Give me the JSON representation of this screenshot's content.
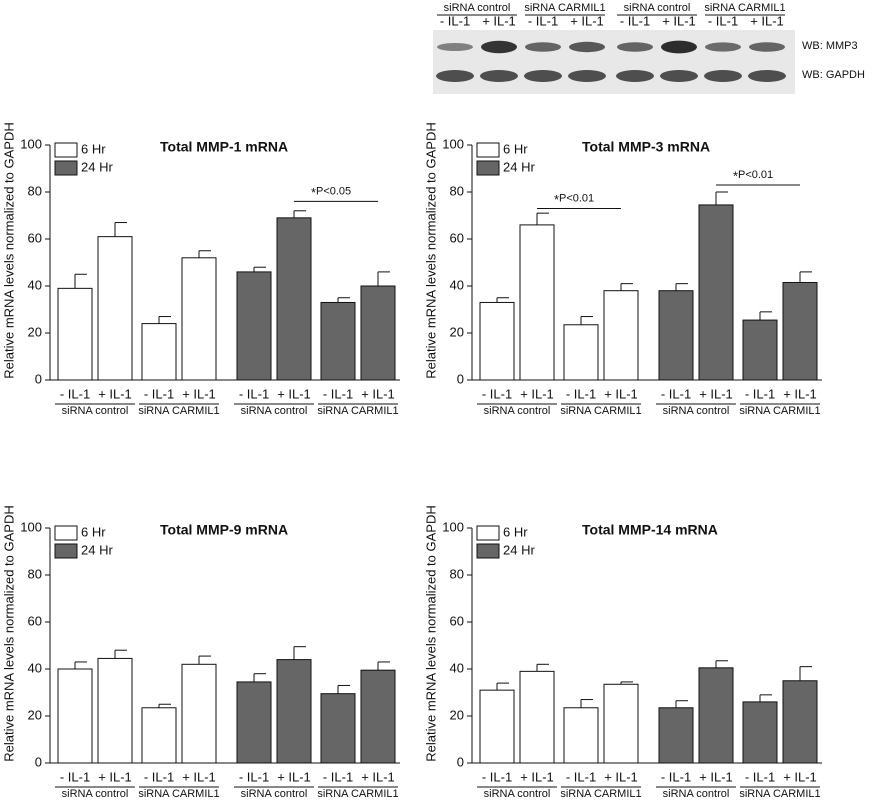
{
  "blot": {
    "groups": [
      "siRNA control",
      "siRNA CARMIL1",
      "siRNA control",
      "siRNA CARMIL1"
    ],
    "lanes": [
      "- IL-1",
      "+ IL-1",
      "- IL-1",
      "+ IL-1",
      "- IL-1",
      "+ IL-1",
      "- IL-1",
      "+ IL-1"
    ],
    "rows": [
      "WB: MMP3",
      "WB: GAPDH"
    ]
  },
  "chart_data": [
    {
      "type": "bar",
      "title": "Total MMP-1 mRNA",
      "ylabel": "Relative mRNA levels normalized to GAPDH",
      "categories": [
        "- IL-1",
        "+ IL-1",
        "- IL-1",
        "+ IL-1",
        "- IL-1",
        "+ IL-1",
        "- IL-1",
        "+ IL-1"
      ],
      "groups": [
        "siRNA control",
        "siRNA CARMIL1",
        "siRNA control",
        "siRNA CARMIL1"
      ],
      "series": [
        {
          "name": "6 Hr",
          "color": "#ffffff",
          "values": [
            39,
            61,
            24,
            52,
            null,
            null,
            null,
            null
          ],
          "errors": [
            6,
            6,
            3,
            3,
            null,
            null,
            null,
            null
          ]
        },
        {
          "name": "24 Hr",
          "color": "#666666",
          "values": [
            null,
            null,
            null,
            null,
            46,
            69,
            33,
            40
          ],
          "errors": [
            null,
            null,
            null,
            null,
            2,
            3,
            2,
            6
          ]
        }
      ],
      "annotations": [
        {
          "star": "*",
          "text": "P<0.05",
          "from": 5,
          "to": 7,
          "y": 76
        }
      ],
      "ylim": [
        0,
        100
      ],
      "yticks": [
        0,
        20,
        40,
        60,
        80,
        100
      ]
    },
    {
      "type": "bar",
      "title": "Total MMP-3 mRNA",
      "ylabel": "Relative mRNA levels normalized to GAPDH",
      "categories": [
        "- IL-1",
        "+ IL-1",
        "- IL-1",
        "+ IL-1",
        "- IL-1",
        "+ IL-1",
        "- IL-1",
        "+ IL-1"
      ],
      "groups": [
        "siRNA control",
        "siRNA CARMIL1",
        "siRNA control",
        "siRNA CARMIL1"
      ],
      "series": [
        {
          "name": "6 Hr",
          "color": "#ffffff",
          "values": [
            33,
            66,
            23.5,
            38,
            null,
            null,
            null,
            null
          ],
          "errors": [
            2,
            5,
            3.5,
            3,
            null,
            null,
            null,
            null
          ]
        },
        {
          "name": "24 Hr",
          "color": "#666666",
          "values": [
            null,
            null,
            null,
            null,
            38,
            74.5,
            25.5,
            41.5
          ],
          "errors": [
            null,
            null,
            null,
            null,
            3,
            5.5,
            3.5,
            4.5
          ]
        }
      ],
      "annotations": [
        {
          "star": "*",
          "text": "P<0.01",
          "from": 1,
          "to": 3,
          "y": 73
        },
        {
          "star": "*",
          "text": "P<0.01",
          "from": 5,
          "to": 7,
          "y": 83
        }
      ],
      "ylim": [
        0,
        100
      ],
      "yticks": [
        0,
        20,
        40,
        60,
        80,
        100
      ]
    },
    {
      "type": "bar",
      "title": "Total MMP-9 mRNA",
      "ylabel": "Relative mRNA levels normalized to GAPDH",
      "categories": [
        "- IL-1",
        "+ IL-1",
        "- IL-1",
        "+ IL-1",
        "- IL-1",
        "+ IL-1",
        "- IL-1",
        "+ IL-1"
      ],
      "groups": [
        "siRNA control",
        "siRNA CARMIL1",
        "siRNA control",
        "siRNA CARMIL1"
      ],
      "series": [
        {
          "name": "6 Hr",
          "color": "#ffffff",
          "values": [
            40,
            44.5,
            23.5,
            42,
            null,
            null,
            null,
            null
          ],
          "errors": [
            3,
            3.5,
            1.5,
            3.5,
            null,
            null,
            null,
            null
          ]
        },
        {
          "name": "24 Hr",
          "color": "#666666",
          "values": [
            null,
            null,
            null,
            null,
            34.5,
            44,
            29.5,
            39.5
          ],
          "errors": [
            null,
            null,
            null,
            null,
            3.5,
            5.5,
            3.5,
            3.5
          ]
        }
      ],
      "ylim": [
        0,
        100
      ],
      "yticks": [
        0,
        20,
        40,
        60,
        80,
        100
      ]
    },
    {
      "type": "bar",
      "title": "Total MMP-14 mRNA",
      "ylabel": "Relative mRNA levels normalized to GAPDH",
      "categories": [
        "- IL-1",
        "+ IL-1",
        "- IL-1",
        "+ IL-1",
        "- IL-1",
        "+ IL-1",
        "- IL-1",
        "+ IL-1"
      ],
      "groups": [
        "siRNA control",
        "siRNA CARMIL1",
        "siRNA control",
        "siRNA CARMIL1"
      ],
      "series": [
        {
          "name": "6 Hr",
          "color": "#ffffff",
          "values": [
            31,
            39,
            23.5,
            33.5,
            null,
            null,
            null,
            null
          ],
          "errors": [
            3,
            3,
            3.5,
            1,
            null,
            null,
            null,
            null
          ]
        },
        {
          "name": "24 Hr",
          "color": "#666666",
          "values": [
            null,
            null,
            null,
            null,
            23.5,
            40.5,
            26,
            35
          ],
          "errors": [
            null,
            null,
            null,
            null,
            3,
            3,
            3,
            6
          ]
        }
      ],
      "ylim": [
        0,
        100
      ],
      "yticks": [
        0,
        20,
        40,
        60,
        80,
        100
      ]
    }
  ]
}
